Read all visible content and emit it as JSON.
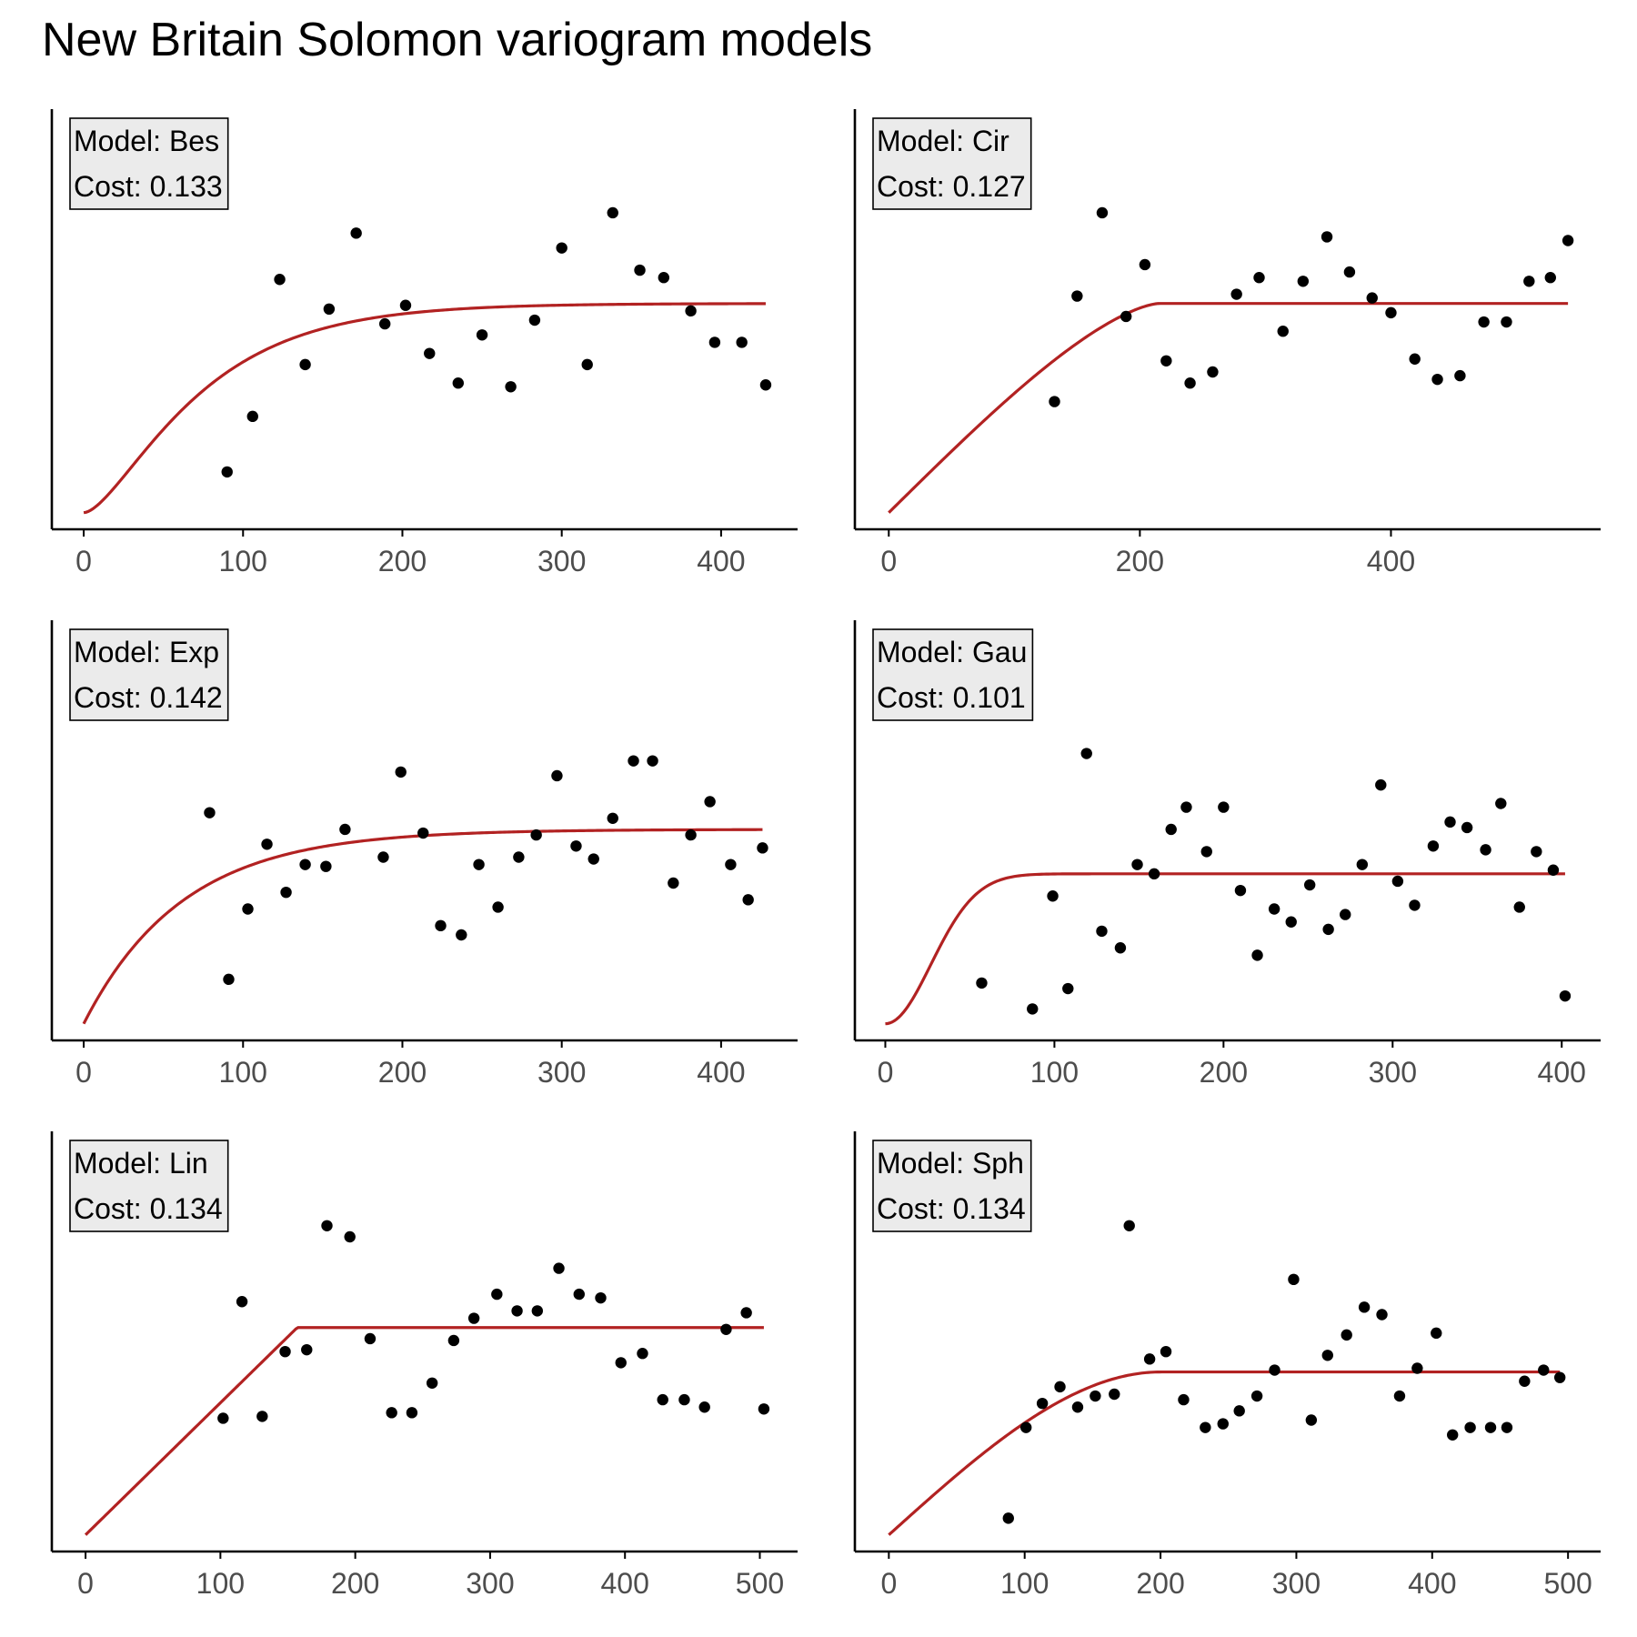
{
  "title": "New Britain Solomon variogram models",
  "colors": {
    "model_line": "#B22222",
    "points": "#000000",
    "axis": "#000000",
    "tick_text": "#4d4d4d",
    "label_fill": "#ebebeb"
  },
  "chart_data": [
    {
      "type": "scatter",
      "model": "Bes",
      "label_model": "Model: Bes",
      "label_cost": "Cost: 0.133",
      "xlim": [
        -20,
        448
      ],
      "ylim": [
        -0.045,
        1.09
      ],
      "xticks": [
        0,
        100,
        200,
        300,
        400
      ],
      "xtick_labels": [
        "0",
        "100",
        "200",
        "300",
        "400"
      ],
      "points": [
        {
          "x": 90,
          "y": 0.11
        },
        {
          "x": 106,
          "y": 0.26
        },
        {
          "x": 123,
          "y": 0.63
        },
        {
          "x": 139,
          "y": 0.4
        },
        {
          "x": 154,
          "y": 0.55
        },
        {
          "x": 171,
          "y": 0.755
        },
        {
          "x": 189,
          "y": 0.51
        },
        {
          "x": 202,
          "y": 0.56
        },
        {
          "x": 217,
          "y": 0.43
        },
        {
          "x": 235,
          "y": 0.35
        },
        {
          "x": 250,
          "y": 0.48
        },
        {
          "x": 268,
          "y": 0.34
        },
        {
          "x": 283,
          "y": 0.52
        },
        {
          "x": 300,
          "y": 0.715
        },
        {
          "x": 316,
          "y": 0.4
        },
        {
          "x": 332,
          "y": 0.81
        },
        {
          "x": 349,
          "y": 0.655
        },
        {
          "x": 364,
          "y": 0.635
        },
        {
          "x": 381,
          "y": 0.545
        },
        {
          "x": 396,
          "y": 0.46
        },
        {
          "x": 413,
          "y": 0.46
        },
        {
          "x": 428,
          "y": 0.345
        }
      ],
      "model_curve": {
        "family": "bessel",
        "nugget": 0.0,
        "psill": 0.565,
        "range": 50,
        "xmax": 428
      }
    },
    {
      "type": "scatter",
      "model": "Cir",
      "label_model": "Model: Cir",
      "label_cost": "Cost: 0.127",
      "xlim": [
        -27,
        567
      ],
      "ylim": [
        -0.045,
        1.09
      ],
      "xticks": [
        0,
        200,
        400
      ],
      "xtick_labels": [
        "0",
        "200",
        "400"
      ],
      "points": [
        {
          "x": 132,
          "y": 0.3
        },
        {
          "x": 150,
          "y": 0.585
        },
        {
          "x": 170,
          "y": 0.81
        },
        {
          "x": 189,
          "y": 0.53
        },
        {
          "x": 204,
          "y": 0.67
        },
        {
          "x": 221,
          "y": 0.41
        },
        {
          "x": 240,
          "y": 0.35
        },
        {
          "x": 258,
          "y": 0.38
        },
        {
          "x": 277,
          "y": 0.59
        },
        {
          "x": 295,
          "y": 0.635
        },
        {
          "x": 314,
          "y": 0.49
        },
        {
          "x": 330,
          "y": 0.625
        },
        {
          "x": 349,
          "y": 0.745
        },
        {
          "x": 367,
          "y": 0.65
        },
        {
          "x": 385,
          "y": 0.58
        },
        {
          "x": 400,
          "y": 0.54
        },
        {
          "x": 419,
          "y": 0.415
        },
        {
          "x": 437,
          "y": 0.36
        },
        {
          "x": 455,
          "y": 0.37
        },
        {
          "x": 474,
          "y": 0.515
        },
        {
          "x": 492,
          "y": 0.515
        },
        {
          "x": 510,
          "y": 0.625
        },
        {
          "x": 527,
          "y": 0.635
        },
        {
          "x": 541,
          "y": 0.735
        }
      ],
      "model_curve": {
        "family": "circular",
        "nugget": 0.0,
        "psill": 0.565,
        "range": 215,
        "xmax": 541
      }
    },
    {
      "type": "scatter",
      "model": "Exp",
      "label_model": "Model: Exp",
      "label_cost": "Cost: 0.142",
      "xlim": [
        -20,
        448
      ],
      "ylim": [
        -0.045,
        1.09
      ],
      "xticks": [
        0,
        100,
        200,
        300,
        400
      ],
      "xtick_labels": [
        "0",
        "100",
        "200",
        "300",
        "400"
      ],
      "points": [
        {
          "x": 79,
          "y": 0.57
        },
        {
          "x": 91,
          "y": 0.12
        },
        {
          "x": 103,
          "y": 0.31
        },
        {
          "x": 115,
          "y": 0.485
        },
        {
          "x": 127,
          "y": 0.355
        },
        {
          "x": 139,
          "y": 0.43
        },
        {
          "x": 152,
          "y": 0.425
        },
        {
          "x": 164,
          "y": 0.525
        },
        {
          "x": 188,
          "y": 0.45
        },
        {
          "x": 199,
          "y": 0.68
        },
        {
          "x": 213,
          "y": 0.515
        },
        {
          "x": 224,
          "y": 0.265
        },
        {
          "x": 237,
          "y": 0.24
        },
        {
          "x": 248,
          "y": 0.43
        },
        {
          "x": 260,
          "y": 0.315
        },
        {
          "x": 273,
          "y": 0.45
        },
        {
          "x": 284,
          "y": 0.51
        },
        {
          "x": 297,
          "y": 0.67
        },
        {
          "x": 309,
          "y": 0.48
        },
        {
          "x": 320,
          "y": 0.445
        },
        {
          "x": 332,
          "y": 0.555
        },
        {
          "x": 345,
          "y": 0.71
        },
        {
          "x": 357,
          "y": 0.71
        },
        {
          "x": 370,
          "y": 0.38
        },
        {
          "x": 381,
          "y": 0.51
        },
        {
          "x": 393,
          "y": 0.6
        },
        {
          "x": 406,
          "y": 0.43
        },
        {
          "x": 417,
          "y": 0.335
        },
        {
          "x": 426,
          "y": 0.475
        }
      ],
      "model_curve": {
        "family": "exponential",
        "nugget": 0.0,
        "psill": 0.525,
        "range": 62,
        "xmax": 426
      }
    },
    {
      "type": "scatter",
      "model": "Gau",
      "label_model": "Model: Gau",
      "label_cost": "Cost: 0.101",
      "xlim": [
        -18,
        423
      ],
      "ylim": [
        -0.045,
        1.09
      ],
      "xticks": [
        0,
        100,
        200,
        300,
        400
      ],
      "xtick_labels": [
        "0",
        "100",
        "200",
        "300",
        "400"
      ],
      "points": [
        {
          "x": 57,
          "y": 0.11
        },
        {
          "x": 87,
          "y": 0.04
        },
        {
          "x": 99,
          "y": 0.345
        },
        {
          "x": 108,
          "y": 0.095
        },
        {
          "x": 119,
          "y": 0.73
        },
        {
          "x": 128,
          "y": 0.25
        },
        {
          "x": 139,
          "y": 0.205
        },
        {
          "x": 149,
          "y": 0.43
        },
        {
          "x": 159,
          "y": 0.405
        },
        {
          "x": 169,
          "y": 0.525
        },
        {
          "x": 178,
          "y": 0.585
        },
        {
          "x": 190,
          "y": 0.465
        },
        {
          "x": 200,
          "y": 0.585
        },
        {
          "x": 210,
          "y": 0.36
        },
        {
          "x": 220,
          "y": 0.185
        },
        {
          "x": 230,
          "y": 0.31
        },
        {
          "x": 240,
          "y": 0.275
        },
        {
          "x": 251,
          "y": 0.375
        },
        {
          "x": 262,
          "y": 0.255
        },
        {
          "x": 272,
          "y": 0.295
        },
        {
          "x": 282,
          "y": 0.43
        },
        {
          "x": 293,
          "y": 0.645
        },
        {
          "x": 303,
          "y": 0.385
        },
        {
          "x": 313,
          "y": 0.32
        },
        {
          "x": 324,
          "y": 0.48
        },
        {
          "x": 334,
          "y": 0.545
        },
        {
          "x": 344,
          "y": 0.53
        },
        {
          "x": 355,
          "y": 0.47
        },
        {
          "x": 364,
          "y": 0.595
        },
        {
          "x": 375,
          "y": 0.315
        },
        {
          "x": 385,
          "y": 0.465
        },
        {
          "x": 395,
          "y": 0.415
        },
        {
          "x": 402,
          "y": 0.075
        }
      ],
      "model_curve": {
        "family": "gaussian",
        "nugget": 0.0,
        "psill": 0.405,
        "range": 38,
        "xmax": 402
      }
    },
    {
      "type": "scatter",
      "model": "Lin",
      "label_model": "Model: Lin",
      "label_cost": "Cost: 0.134",
      "xlim": [
        -25,
        528
      ],
      "ylim": [
        -0.045,
        1.09
      ],
      "xticks": [
        0,
        100,
        200,
        300,
        400,
        500
      ],
      "xtick_labels": [
        "0",
        "100",
        "200",
        "300",
        "400",
        "500"
      ],
      "points": [
        {
          "x": 102,
          "y": 0.315
        },
        {
          "x": 116,
          "y": 0.63
        },
        {
          "x": 131,
          "y": 0.32
        },
        {
          "x": 148,
          "y": 0.495
        },
        {
          "x": 164,
          "y": 0.5
        },
        {
          "x": 179,
          "y": 0.835
        },
        {
          "x": 196,
          "y": 0.805
        },
        {
          "x": 211,
          "y": 0.53
        },
        {
          "x": 227,
          "y": 0.33
        },
        {
          "x": 242,
          "y": 0.33
        },
        {
          "x": 257,
          "y": 0.41
        },
        {
          "x": 273,
          "y": 0.525
        },
        {
          "x": 288,
          "y": 0.585
        },
        {
          "x": 305,
          "y": 0.65
        },
        {
          "x": 320,
          "y": 0.605
        },
        {
          "x": 335,
          "y": 0.605
        },
        {
          "x": 351,
          "y": 0.72
        },
        {
          "x": 366,
          "y": 0.65
        },
        {
          "x": 382,
          "y": 0.64
        },
        {
          "x": 397,
          "y": 0.465
        },
        {
          "x": 413,
          "y": 0.49
        },
        {
          "x": 428,
          "y": 0.365
        },
        {
          "x": 444,
          "y": 0.365
        },
        {
          "x": 459,
          "y": 0.345
        },
        {
          "x": 475,
          "y": 0.555
        },
        {
          "x": 490,
          "y": 0.6
        },
        {
          "x": 503,
          "y": 0.34
        }
      ],
      "model_curve": {
        "family": "linear",
        "nugget": 0.0,
        "psill": 0.56,
        "range": 157,
        "xmax": 503
      }
    },
    {
      "type": "scatter",
      "model": "Sph",
      "label_model": "Model: Sph",
      "label_cost": "Cost: 0.134",
      "xlim": [
        -25,
        524
      ],
      "ylim": [
        -0.045,
        1.09
      ],
      "xticks": [
        0,
        100,
        200,
        300,
        400,
        500
      ],
      "xtick_labels": [
        "0",
        "100",
        "200",
        "300",
        "400",
        "500"
      ],
      "points": [
        {
          "x": 88,
          "y": 0.045
        },
        {
          "x": 101,
          "y": 0.29
        },
        {
          "x": 113,
          "y": 0.355
        },
        {
          "x": 126,
          "y": 0.4
        },
        {
          "x": 139,
          "y": 0.345
        },
        {
          "x": 152,
          "y": 0.375
        },
        {
          "x": 166,
          "y": 0.38
        },
        {
          "x": 177,
          "y": 0.835
        },
        {
          "x": 192,
          "y": 0.475
        },
        {
          "x": 204,
          "y": 0.495
        },
        {
          "x": 217,
          "y": 0.365
        },
        {
          "x": 233,
          "y": 0.29
        },
        {
          "x": 246,
          "y": 0.3
        },
        {
          "x": 258,
          "y": 0.335
        },
        {
          "x": 271,
          "y": 0.375
        },
        {
          "x": 284,
          "y": 0.445
        },
        {
          "x": 298,
          "y": 0.69
        },
        {
          "x": 311,
          "y": 0.31
        },
        {
          "x": 323,
          "y": 0.485
        },
        {
          "x": 337,
          "y": 0.54
        },
        {
          "x": 350,
          "y": 0.615
        },
        {
          "x": 363,
          "y": 0.595
        },
        {
          "x": 376,
          "y": 0.375
        },
        {
          "x": 389,
          "y": 0.45
        },
        {
          "x": 403,
          "y": 0.545
        },
        {
          "x": 415,
          "y": 0.27
        },
        {
          "x": 428,
          "y": 0.29
        },
        {
          "x": 443,
          "y": 0.29
        },
        {
          "x": 455,
          "y": 0.29
        },
        {
          "x": 468,
          "y": 0.415
        },
        {
          "x": 482,
          "y": 0.445
        },
        {
          "x": 494,
          "y": 0.425
        }
      ],
      "model_curve": {
        "family": "spherical",
        "nugget": 0.0,
        "psill": 0.44,
        "range": 200,
        "xmax": 494
      }
    }
  ]
}
